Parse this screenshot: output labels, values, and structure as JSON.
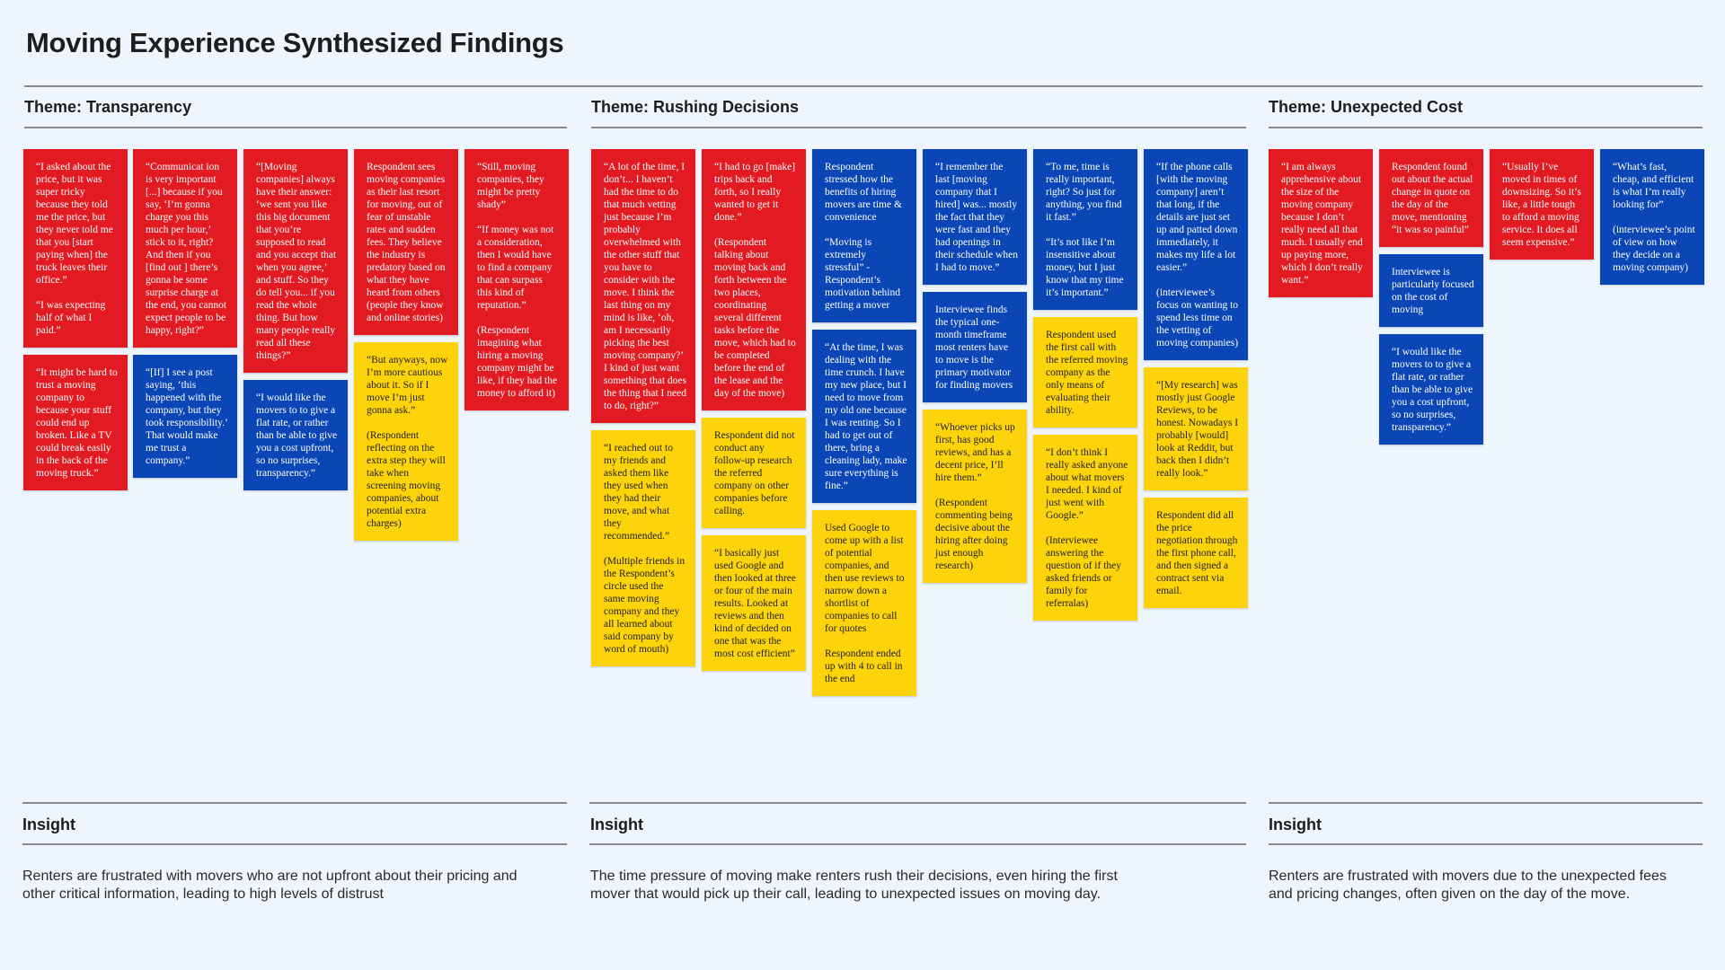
{
  "title": "Moving Experience Synthesized Findings",
  "colors": {
    "background": "#eef5fd",
    "red": "#e11b21",
    "blue": "#0b46b7",
    "yellow": "#fdd40b"
  },
  "sections": [
    {
      "theme": "Theme: Transparency",
      "insight_label": "Insight",
      "insight": "Renters are frustrated with movers who are not upfront about their pricing and other critical information, leading to high levels of distrust",
      "columns": [
        [
          {
            "color": "red",
            "lines": [
              "“I asked about the price, but it was super tricky because they told me the price, but they never told me that you [start paying when] the truck leaves their office.”",
              "“I was expecting half of what I paid.”"
            ]
          },
          {
            "color": "red",
            "lines": [
              "“It might be hard to trust a moving company to because your stuff could end up broken. Like a TV could break easily in the back of the moving truck.”"
            ]
          }
        ],
        [
          {
            "color": "red",
            "lines": [
              "“Communicat ion is  very important [...] because if you say, ‘I’m gonna charge you this much per hour,’ stick to it, right? And then if you [find out ] there’s gonna be some surprise charge at the end, you cannot expect people to be happy, right?”"
            ]
          },
          {
            "color": "blue",
            "lines": [
              "“[If] I see a post saying, ‘this happened with the company, but they took responsibility.’ That would make me trust a company.”"
            ]
          }
        ],
        [
          {
            "color": "red",
            "lines": [
              "“[Moving companies] always have their answer: ‘we sent you like this big document that you’re supposed to read and you accept that when you agree,’ and stuff. So they do tell you... if you read the whole thing. But how many people really read all these things?”"
            ]
          },
          {
            "color": "blue",
            "lines": [
              "“I would like the movers to to give a flat rate, or rather than be able to give you a cost upfront, so no surprises, transparency.”"
            ]
          }
        ],
        [
          {
            "color": "red",
            "lines": [
              "Respondent sees moving companies as their last resort for moving, out of fear of unstable rates and sudden fees. They believe the industry is predatory based on what they have heard from others (people they know and online stories)"
            ]
          },
          {
            "color": "yellow",
            "lines": [
              "“But anyways, now I’m more cautious about it. So if I move I’m just gonna ask.”",
              "(Respondent reflecting on the extra step they will take when screening moving companies, about potential extra charges)"
            ]
          }
        ],
        [
          {
            "color": "red",
            "lines": [
              "“Still, moving companies, they might be pretty shady”",
              "“If money was not a consideration, then I would have to find a company that can surpass this kind of reputation.”",
              "(Respondent imagining what hiring a moving company might be like, if they had the money to afford it)"
            ]
          }
        ]
      ]
    },
    {
      "theme": "Theme: Rushing Decisions",
      "insight_label": "Insight",
      "insight": "The time pressure of moving make renters rush their decisions, even hiring the first mover that would pick up their call, leading to unexpected issues on moving day.",
      "columns": [
        [
          {
            "color": "red",
            "lines": [
              "“A lot of the time, I don’t... I haven’t had the time to do that much vetting just because I’m probably overwhelmed with the other stuff that you have to consider with the move. I think the last thing on my mind is like, ‘oh, am I necessarily picking the best moving company?’ I kind of just want something that does the thing that I need to do, right?”"
            ]
          },
          {
            "color": "yellow",
            "lines": [
              "“I reached out to my friends and asked them like they used when they had their move, and what they recommended.”",
              "(Multiple friends in the Respondent’s circle used the same moving company and they all learned about said company by word of mouth)"
            ]
          }
        ],
        [
          {
            "color": "red",
            "lines": [
              "“I had to go [make] trips back and forth, so I really wanted to get it done.”",
              "(Respondent talking about moving back and forth between the two places, coordinating several different tasks before the move, which had to be completed before the end of the lease and the day of the move)"
            ]
          },
          {
            "color": "yellow",
            "lines": [
              "Respondent did not conduct any follow-up research the referred company on other companies before calling."
            ]
          },
          {
            "color": "yellow",
            "lines": [
              "“I basically just used Google and then looked at three or four of the main results. Looked at reviews and then kind of decided on one that was the most cost efficient”"
            ]
          }
        ],
        [
          {
            "color": "blue",
            "lines": [
              "Respondent stressed how the benefits of hiring movers are time & convenience",
              "“Moving is extremely stressful” - Respondent’s motivation behind getting a mover"
            ]
          },
          {
            "color": "blue",
            "lines": [
              "“At the time, I was dealing with the time crunch. I have my new place, but I need to move from my old one because I was renting. So I had to get out of there, bring a cleaning lady, make sure everything is fine.”"
            ]
          },
          {
            "color": "yellow",
            "lines": [
              "Used Google to come up with a list of potential companies, and then use reviews to narrow down a shortlist of companies to call for quotes",
              "Respondent ended up with 4 to call in the end"
            ]
          }
        ],
        [
          {
            "color": "blue",
            "lines": [
              "“I remember the last [moving company that I hired] was... mostly the fact that they were fast and they had openings in their schedule when I had to move.”"
            ]
          },
          {
            "color": "blue",
            "lines": [
              "Interviewee finds the typical one-month timeframe most renters have to move is the primary motivator for finding movers"
            ]
          },
          {
            "color": "yellow",
            "lines": [
              "“Whoever picks up first, has good reviews, and has a decent price, I’ll hire them.”",
              "(Respondent commenting being decisive about the hiring after doing just enough research)"
            ]
          }
        ],
        [
          {
            "color": "blue",
            "lines": [
              "“To me, time is really important, right? So just for anything, you find it fast.”",
              "“It’s not like I’m insensitive about money, but I just know that my time it’s important.”"
            ]
          },
          {
            "color": "yellow",
            "lines": [
              "Respondent used the first call with the referred moving company as the only means of evaluating their ability."
            ]
          },
          {
            "color": "yellow",
            "lines": [
              "“I don’t think I really asked anyone about what movers I needed. I kind of just went with Google.”",
              "(Interviewee answering the question of if they asked friends or family for referralas)"
            ]
          }
        ],
        [
          {
            "color": "blue",
            "lines": [
              "“If the phone calls [with the moving company] aren’t that long, if the details are just set up and patted down immediately, it makes my life a lot easier.”",
              "(interviewee’s focus on wanting to spend less time on the vetting of moving companies)"
            ]
          },
          {
            "color": "yellow",
            "lines": [
              "“[My research] was mostly just Google Reviews, to be honest. Nowadays I probably [would] look at Reddit, but back then I didn’t really look.”"
            ]
          },
          {
            "color": "yellow",
            "lines": [
              "Respondent did all the price negotiation through the first phone call, and then signed a contract sent via email."
            ]
          }
        ]
      ]
    },
    {
      "theme": "Theme: Unexpected Cost",
      "insight_label": "Insight",
      "insight": "Renters are frustrated with movers due to the unexpected fees and pricing changes, often given on the day of the move.",
      "columns": [
        [
          {
            "color": "red",
            "lines": [
              "“I am always apprehensive about the size of the moving company because I don’t really need all that much. I usually end up paying more, which I don’t really want.”"
            ]
          }
        ],
        [
          {
            "color": "red",
            "lines": [
              "Respondent found out about the actual change in quote on the day of the move, mentioning “it was so painful”"
            ]
          },
          {
            "color": "blue",
            "lines": [
              "Interviewee is particularly focused on the cost of moving"
            ]
          },
          {
            "color": "blue",
            "lines": [
              "“I would like the movers to to give a flat rate, or rather than be able to give you a cost upfront, so no surprises, transparency.”"
            ]
          }
        ],
        [
          {
            "color": "red",
            "lines": [
              "“Usually I’ve moved in times of downsizing. So it’s like, a little tough to afford a moving service. It does all seem expensive.”"
            ]
          }
        ],
        [
          {
            "color": "blue",
            "lines": [
              "“What’s fast, cheap, and efficient is what I’m really looking for”",
              "(interviewee’s point of view on how they decide on a moving company)"
            ]
          }
        ]
      ]
    }
  ]
}
